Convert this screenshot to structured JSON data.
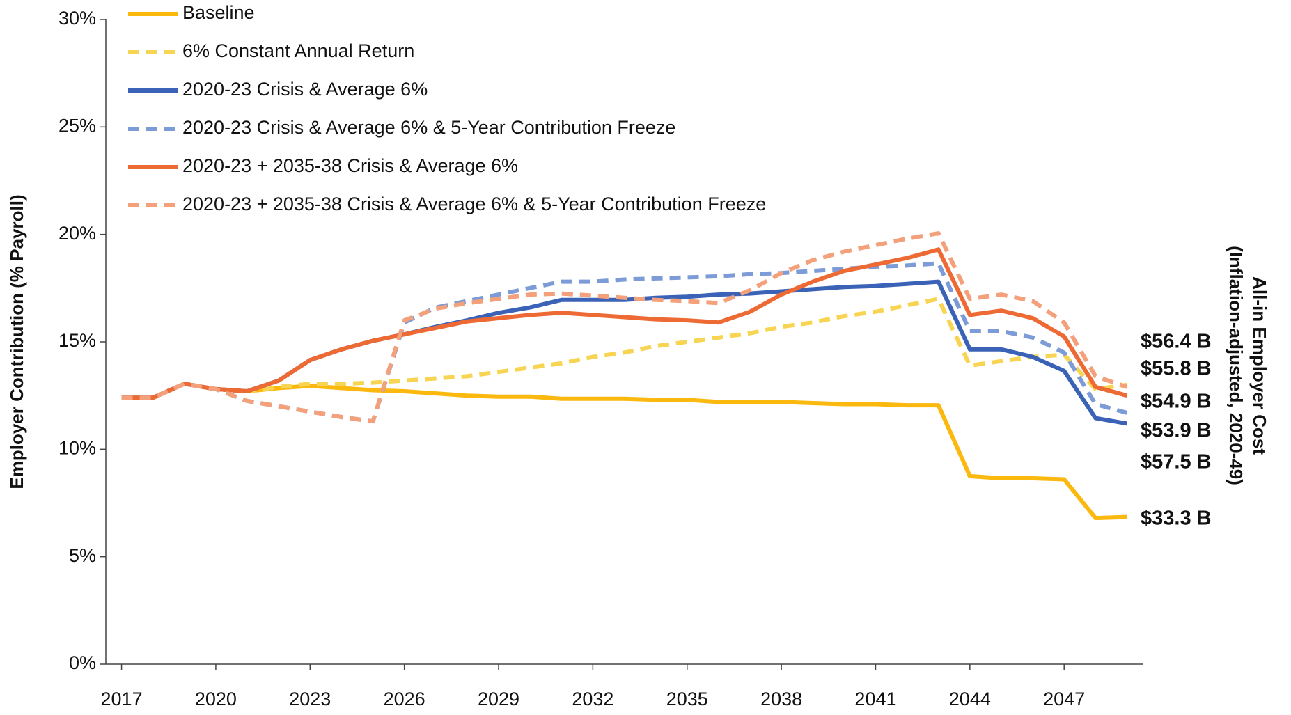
{
  "chart_data": {
    "type": "line",
    "y_axis_label": "Employer Contribution (% Payroll)",
    "y2_axis_label": [
      "All-in Employer Cost",
      "(Inflation-adjusted, 2020-49)"
    ],
    "x": [
      2017,
      2018,
      2019,
      2020,
      2021,
      2022,
      2023,
      2024,
      2025,
      2026,
      2027,
      2028,
      2029,
      2030,
      2031,
      2032,
      2033,
      2034,
      2035,
      2036,
      2037,
      2038,
      2039,
      2040,
      2041,
      2042,
      2043,
      2044,
      2045,
      2046,
      2047,
      2048,
      2049
    ],
    "xlim": [
      2016.5,
      2049.5
    ],
    "xticks": [
      2017,
      2020,
      2023,
      2026,
      2029,
      2032,
      2035,
      2038,
      2041,
      2044,
      2047
    ],
    "ylim": [
      0,
      30
    ],
    "yticks": [
      {
        "value": 0,
        "label": "0%"
      },
      {
        "value": 5,
        "label": "5%"
      },
      {
        "value": 10,
        "label": "10%"
      },
      {
        "value": 15,
        "label": "15%"
      },
      {
        "value": 20,
        "label": "20%"
      },
      {
        "value": 25,
        "label": "25%"
      },
      {
        "value": 30,
        "label": "30%"
      }
    ],
    "grid": false,
    "legend": "top-left",
    "series": [
      {
        "name": "Baseline",
        "color": "#fbb80f",
        "dashed": false,
        "end_label": "$33.3 B",
        "values": [
          12.4,
          12.4,
          13.05,
          12.8,
          12.7,
          12.85,
          12.95,
          12.85,
          12.75,
          12.7,
          12.6,
          12.5,
          12.45,
          12.45,
          12.35,
          12.35,
          12.35,
          12.3,
          12.3,
          12.2,
          12.2,
          12.2,
          12.15,
          12.1,
          12.1,
          12.05,
          12.05,
          8.75,
          8.65,
          8.65,
          8.6,
          6.8,
          6.85
        ]
      },
      {
        "name": "6% Constant Annual Return",
        "color": "#f7d552",
        "dashed": true,
        "end_label": "$57.5 B",
        "values": [
          12.4,
          12.4,
          13.05,
          12.8,
          12.7,
          12.9,
          13.05,
          13.05,
          13.1,
          13.2,
          13.3,
          13.4,
          13.6,
          13.8,
          14.0,
          14.3,
          14.5,
          14.8,
          15.0,
          15.2,
          15.4,
          15.7,
          15.9,
          16.2,
          16.4,
          16.7,
          17.0,
          13.9,
          14.1,
          14.3,
          14.4,
          12.8,
          13.0
        ]
      },
      {
        "name": "2020-23 Crisis & Average 6%",
        "color": "#3a63b8",
        "dashed": false,
        "end_label": "$53.9 B",
        "values": [
          12.4,
          12.4,
          13.05,
          12.8,
          12.7,
          13.2,
          14.15,
          14.65,
          15.05,
          15.35,
          15.7,
          16.0,
          16.35,
          16.6,
          16.95,
          16.95,
          16.95,
          17.05,
          17.1,
          17.2,
          17.25,
          17.35,
          17.45,
          17.55,
          17.6,
          17.7,
          17.8,
          14.65,
          14.65,
          14.3,
          13.65,
          11.45,
          11.2
        ]
      },
      {
        "name": "2020-23 Crisis & Average 6% & 5-Year Contribution Freeze",
        "color": "#7d9bd6",
        "dashed": true,
        "end_label": "$54.9 B",
        "values": [
          12.4,
          12.4,
          13.05,
          12.8,
          12.25,
          12.0,
          11.75,
          11.5,
          11.3,
          15.9,
          16.6,
          16.9,
          17.2,
          17.5,
          17.8,
          17.8,
          17.9,
          17.95,
          18.0,
          18.05,
          18.15,
          18.2,
          18.3,
          18.4,
          18.5,
          18.55,
          18.65,
          15.5,
          15.5,
          15.2,
          14.5,
          12.1,
          11.7
        ]
      },
      {
        "name": "2020-23 + 2035-38 Crisis & Average 6%",
        "color": "#ee6a35",
        "dashed": false,
        "end_label": "$55.8 B",
        "values": [
          12.4,
          12.4,
          13.05,
          12.8,
          12.7,
          13.2,
          14.15,
          14.65,
          15.05,
          15.35,
          15.65,
          15.95,
          16.1,
          16.25,
          16.35,
          16.25,
          16.15,
          16.05,
          16.0,
          15.9,
          16.4,
          17.2,
          17.8,
          18.3,
          18.6,
          18.9,
          19.3,
          16.25,
          16.45,
          16.1,
          15.25,
          12.9,
          12.5
        ]
      },
      {
        "name": "2020-23 + 2035-38 Crisis & Average 6% & 5-Year Contribution Freeze",
        "color": "#f4a07a",
        "dashed": true,
        "end_label": "$56.4 B",
        "values": [
          12.4,
          12.4,
          13.05,
          12.8,
          12.25,
          12.0,
          11.75,
          11.5,
          11.3,
          16.0,
          16.55,
          16.8,
          17.0,
          17.2,
          17.25,
          17.15,
          17.05,
          16.95,
          16.9,
          16.8,
          17.4,
          18.2,
          18.8,
          19.2,
          19.5,
          19.8,
          20.05,
          17.0,
          17.2,
          16.9,
          15.9,
          13.4,
          12.9
        ]
      }
    ]
  }
}
